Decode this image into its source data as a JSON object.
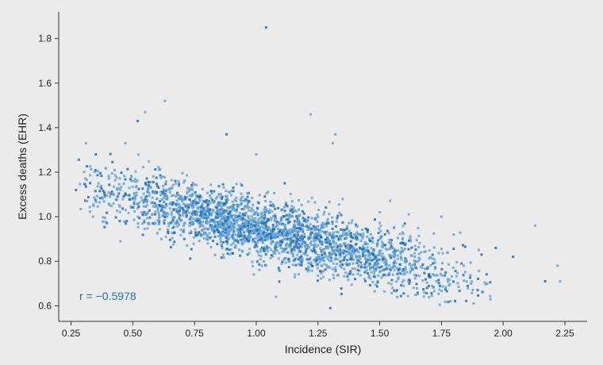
{
  "chart_data": {
    "type": "scatter",
    "title": "",
    "xlabel": "Incidence (SIR)",
    "ylabel": "Excess deaths (EHR)",
    "xlim": [
      0.2,
      2.34
    ],
    "ylim": [
      0.53,
      1.92
    ],
    "xticks": [
      "0.25",
      "0.50",
      "0.75",
      "1.00",
      "1.25",
      "1.50",
      "1.75",
      "2.00",
      "2.25"
    ],
    "yticks": [
      "0.6",
      "0.8",
      "1.0",
      "1.2",
      "1.4",
      "1.6",
      "1.8"
    ],
    "grid": false,
    "legend": "none",
    "annotation": "r = −0.5978",
    "colors": {
      "point_light": "#5b9fd4",
      "point_dark": "#1f6fb5",
      "annotation": "#2a6fad",
      "background": "#ebebeb"
    },
    "notable_points": [
      {
        "x": 1.04,
        "y": 1.85
      },
      {
        "x": 0.63,
        "y": 1.52
      },
      {
        "x": 0.55,
        "y": 1.47
      },
      {
        "x": 1.22,
        "y": 1.46
      },
      {
        "x": 0.52,
        "y": 1.43
      },
      {
        "x": 1.32,
        "y": 1.37
      },
      {
        "x": 0.88,
        "y": 1.37
      },
      {
        "x": 1.31,
        "y": 1.33
      },
      {
        "x": 1.0,
        "y": 1.28
      },
      {
        "x": 0.47,
        "y": 1.33
      },
      {
        "x": 2.13,
        "y": 0.96
      },
      {
        "x": 2.04,
        "y": 0.82
      },
      {
        "x": 2.17,
        "y": 0.71
      },
      {
        "x": 2.23,
        "y": 0.71
      },
      {
        "x": 2.22,
        "y": 0.78
      },
      {
        "x": 1.3,
        "y": 0.59
      },
      {
        "x": 1.08,
        "y": 0.64
      },
      {
        "x": 1.68,
        "y": 0.66
      },
      {
        "x": 0.31,
        "y": 1.33
      },
      {
        "x": 0.27,
        "y": 1.12
      },
      {
        "x": 0.45,
        "y": 0.89
      },
      {
        "x": 1.97,
        "y": 0.86
      },
      {
        "x": 1.84,
        "y": 0.78
      },
      {
        "x": 1.62,
        "y": 0.7
      },
      {
        "x": 1.4,
        "y": 0.72
      },
      {
        "x": 1.8,
        "y": 0.92
      },
      {
        "x": 1.75,
        "y": 1.0
      },
      {
        "x": 1.5,
        "y": 1.02
      },
      {
        "x": 1.35,
        "y": 1.08
      },
      {
        "x": 0.35,
        "y": 1.28
      }
    ]
  }
}
